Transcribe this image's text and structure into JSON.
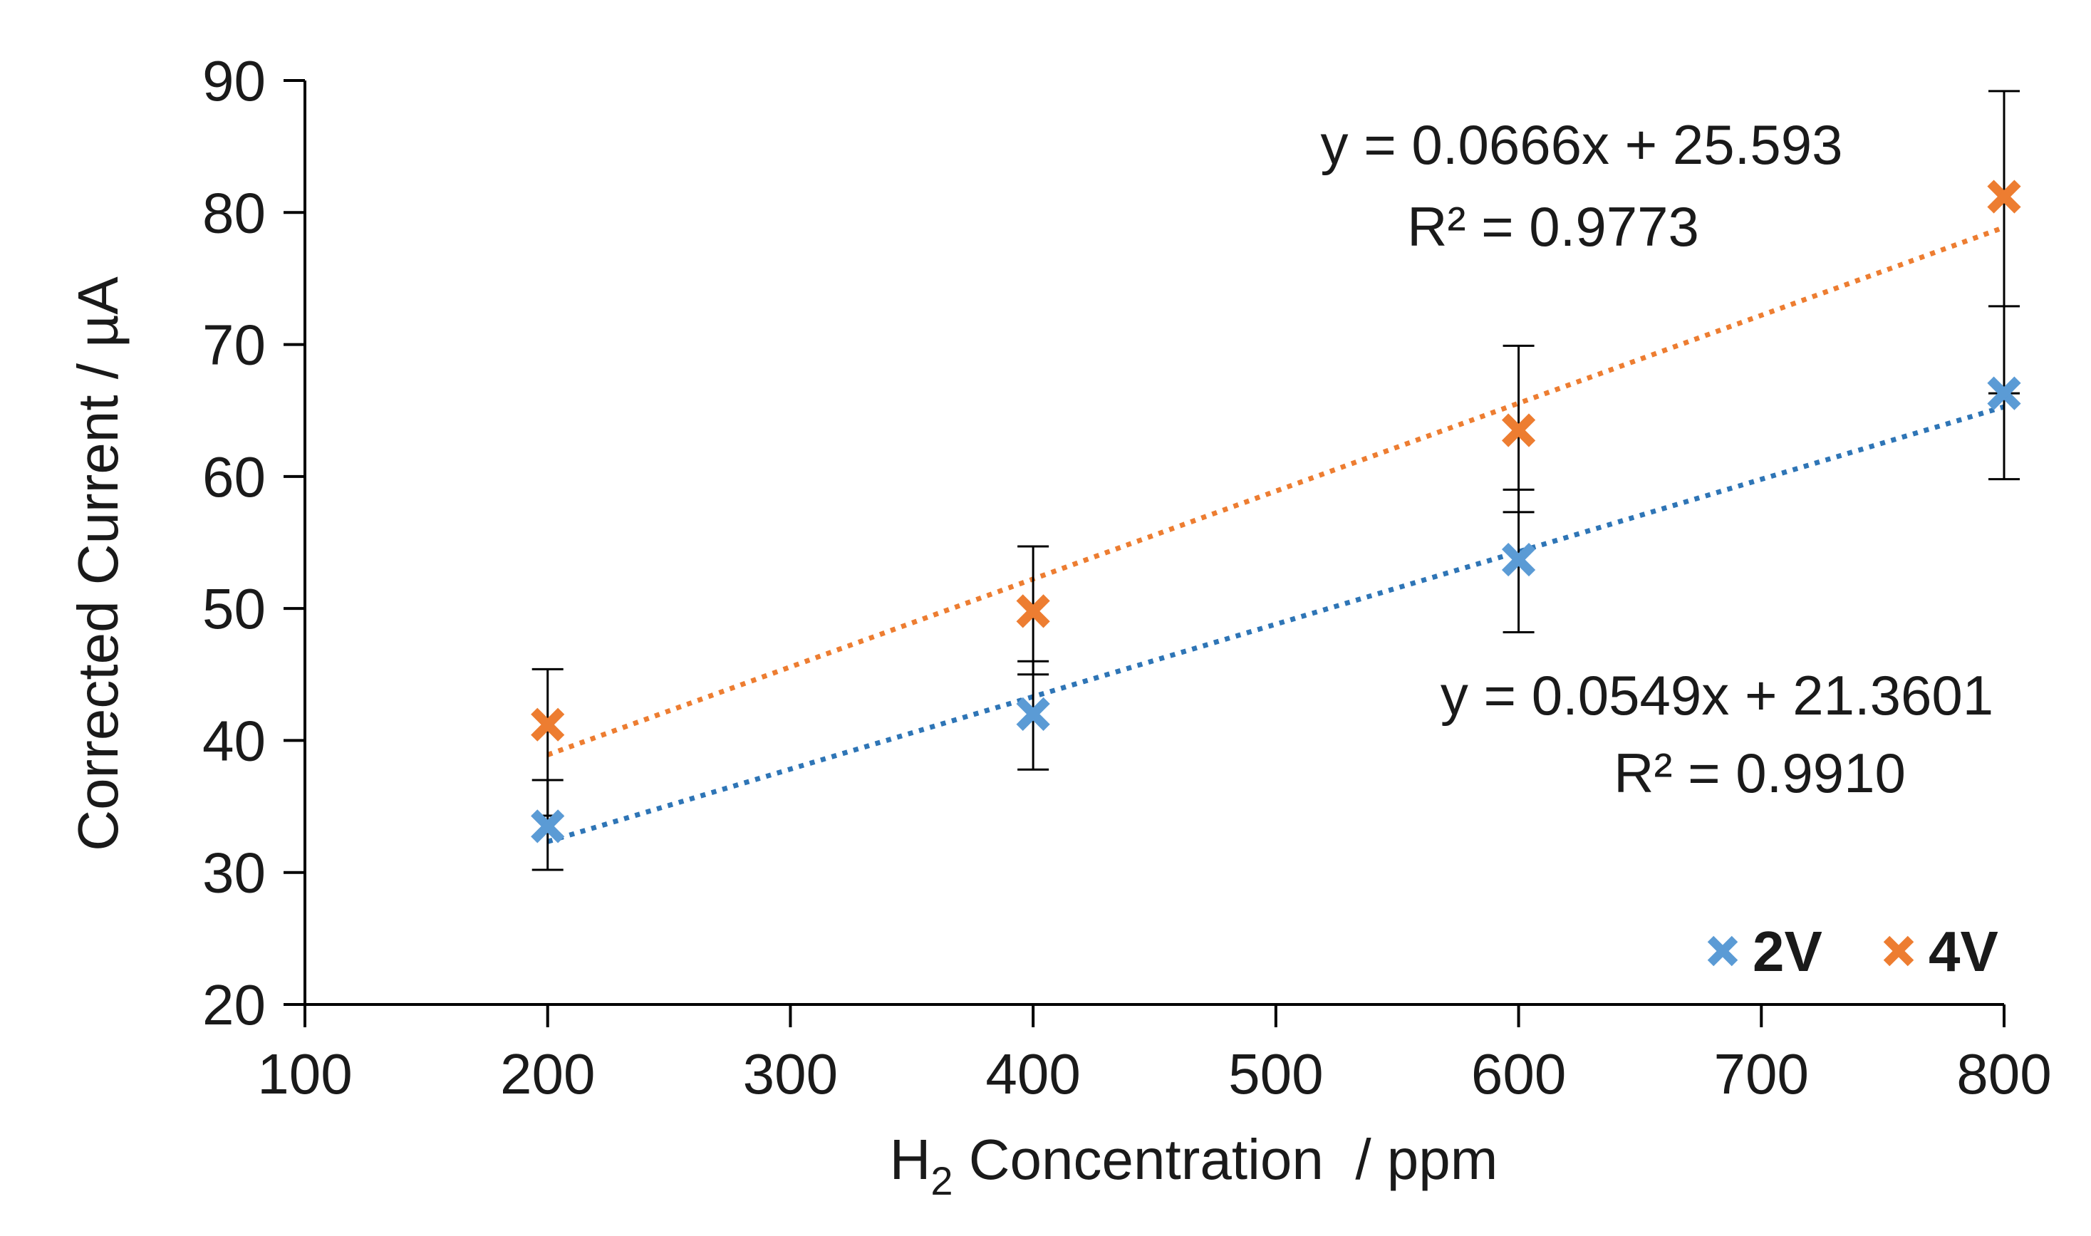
{
  "chart_data": {
    "type": "scatter",
    "title": "",
    "xlabel": {
      "prefix": "H",
      "subscript": "2",
      "suffix": " Concentration  / ppm"
    },
    "ylabel": "Corrected Current / µA",
    "xlim": [
      100,
      800
    ],
    "ylim": [
      20,
      90
    ],
    "x_ticks": [
      "100",
      "200",
      "300",
      "400",
      "500",
      "600",
      "700",
      "800"
    ],
    "y_ticks": [
      "20",
      "30",
      "40",
      "50",
      "60",
      "70",
      "80",
      "90"
    ],
    "grid": false,
    "legend_position": "bottom-right",
    "series": [
      {
        "name": "2V",
        "color": "#5b9bd5",
        "trend_color": "#2e75b6",
        "marker": "x",
        "x": [
          200,
          400,
          600,
          800
        ],
        "y": [
          33.5,
          42.0,
          53.7,
          66.3
        ],
        "err_low": [
          30.2,
          37.8,
          48.2,
          59.8
        ],
        "err_high": [
          37.0,
          46.0,
          59.0,
          72.9
        ],
        "trendline": {
          "slope": 0.0549,
          "intercept": 21.3601
        },
        "equation": "y = 0.0549x + 21.3601",
        "r_squared": "R² = 0.9910"
      },
      {
        "name": "4V",
        "color": "#ed7d31",
        "trend_color": "#ed7d31",
        "marker": "x",
        "x": [
          200,
          400,
          600,
          800
        ],
        "y": [
          41.2,
          49.8,
          63.5,
          81.2
        ],
        "err_low": [
          34.3,
          45.0,
          57.3,
          66.3
        ],
        "err_high": [
          45.4,
          54.7,
          69.9,
          89.2
        ],
        "trendline": {
          "slope": 0.0666,
          "intercept": 25.593
        },
        "equation": "y = 0.0666x + 25.593",
        "r_squared": "R² = 0.9773"
      }
    ]
  }
}
